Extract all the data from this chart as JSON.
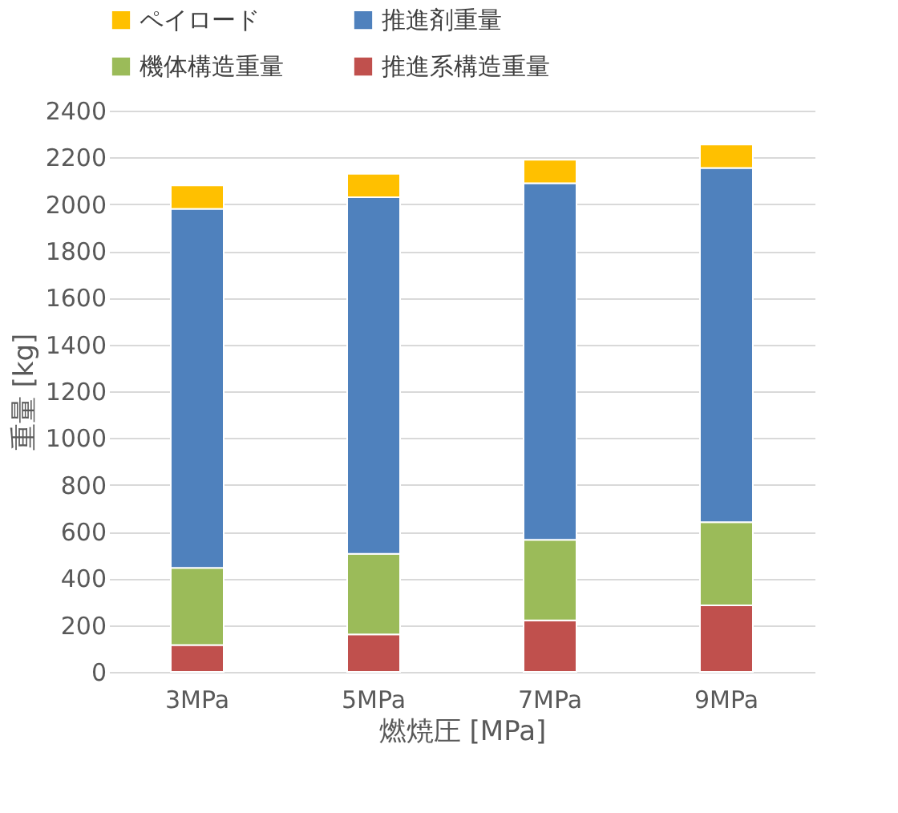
{
  "chart_data": {
    "type": "bar",
    "stacked": true,
    "xlabel": "燃焼圧 [MPa]",
    "ylabel": "重量 [kg]",
    "categories": [
      "3MPa",
      "5MPa",
      "7MPa",
      "9MPa"
    ],
    "series": [
      {
        "name": "推進系構造重量",
        "color": "#c0504d",
        "values": [
          115,
          160,
          220,
          285
        ]
      },
      {
        "name": "機体構造重量",
        "color": "#9bbb59",
        "values": [
          330,
          345,
          345,
          355
        ]
      },
      {
        "name": "推進剤重量",
        "color": "#4f81bd",
        "values": [
          1535,
          1525,
          1525,
          1515
        ]
      },
      {
        "name": "ペイロード",
        "color": "#ffc000",
        "values": [
          100,
          100,
          100,
          100
        ]
      }
    ],
    "ylim": [
      0,
      2400
    ],
    "yticks": [
      0,
      200,
      400,
      600,
      800,
      1000,
      1200,
      1400,
      1600,
      1800,
      2000,
      2200,
      2400
    ],
    "grid": "y",
    "legend": "top"
  }
}
